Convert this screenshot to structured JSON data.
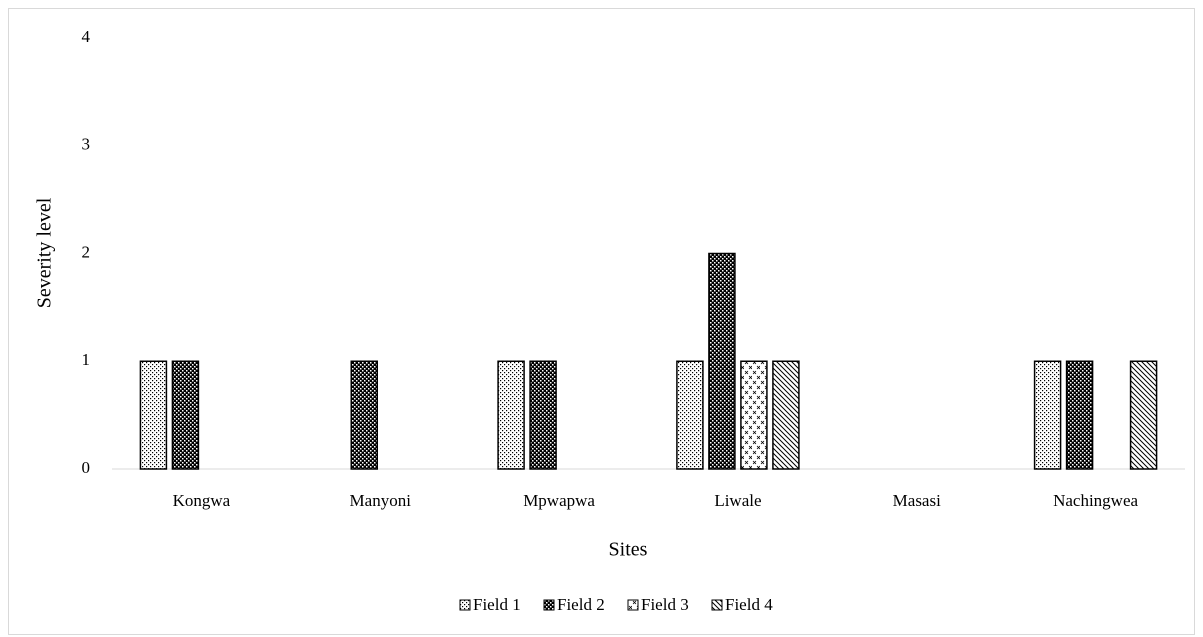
{
  "chart_data": {
    "type": "bar",
    "categories": [
      "Kongwa",
      "Manyoni",
      "Mpwapwa",
      "Liwale",
      "Masasi",
      "Nachingwea"
    ],
    "series": [
      {
        "name": "Field 1",
        "color": "#000000",
        "values": [
          1,
          0,
          1,
          1,
          0,
          1
        ]
      },
      {
        "name": "Field 2",
        "color": "#000000",
        "values": [
          1,
          1,
          1,
          2,
          0,
          1
        ]
      },
      {
        "name": "Field 3",
        "color": "#000000",
        "values": [
          0,
          0,
          0,
          1,
          0,
          0
        ]
      },
      {
        "name": "Field 4",
        "color": "#000000",
        "values": [
          0,
          0,
          0,
          1,
          0,
          1
        ]
      }
    ],
    "x_label": "Sites",
    "y_label": "Severity level",
    "ylim": [
      0,
      4
    ],
    "yticks": [
      0,
      1,
      2,
      3,
      4
    ],
    "grid": false,
    "legend": "bottom"
  }
}
